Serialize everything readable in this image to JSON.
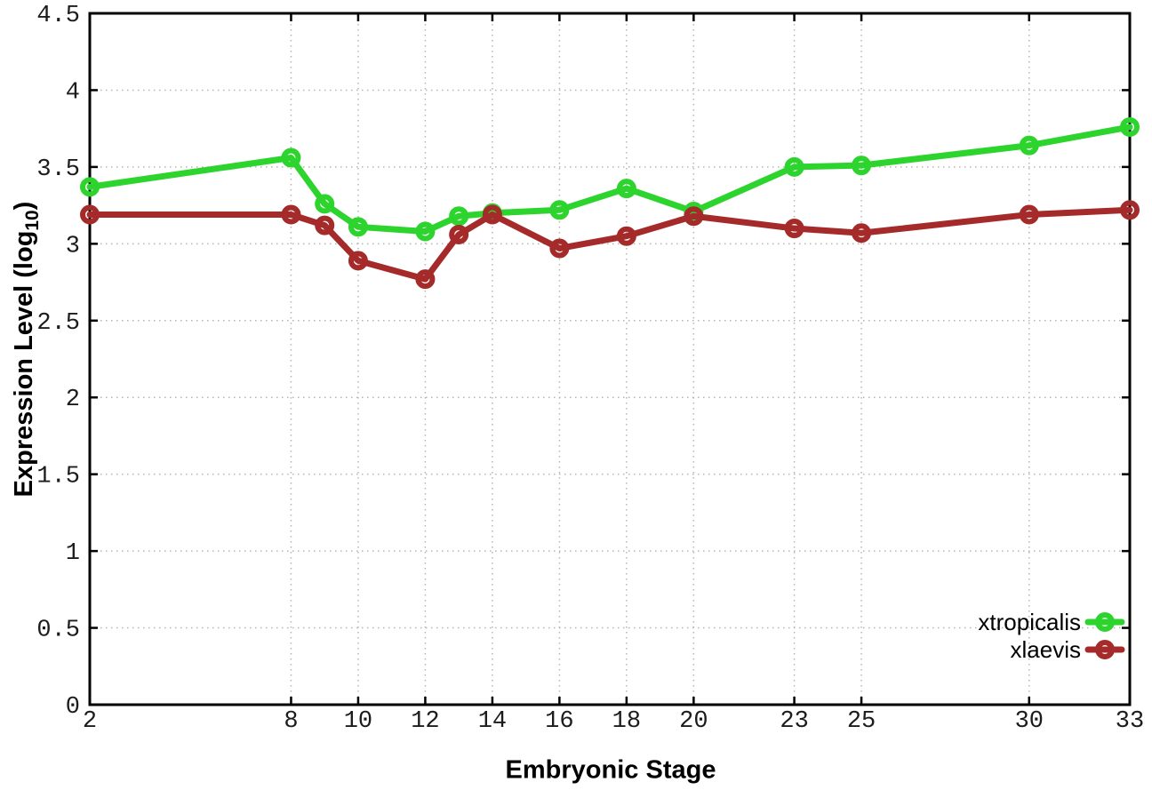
{
  "page": {
    "background": "#ffffff"
  },
  "chart_data": {
    "type": "line",
    "title": "",
    "xlabel": "Embryonic Stage",
    "ylabel": "Expression Level (log10)",
    "ylabel_parts": {
      "prefix": "Expression Level (log",
      "sub": "10",
      "suffix": ")"
    },
    "xlim": [
      2,
      33
    ],
    "ylim": [
      0,
      4.5
    ],
    "grid": true,
    "grid_style": "dotted",
    "xticks": [
      2,
      8,
      10,
      12,
      14,
      16,
      18,
      20,
      23,
      25,
      30,
      33
    ],
    "xtick_labels": [
      "2",
      "8",
      "10",
      "12",
      "14",
      "16",
      "18",
      "20",
      "23",
      "25",
      "30",
      "33"
    ],
    "yticks": [
      0,
      0.5,
      1,
      1.5,
      2,
      2.5,
      3,
      3.5,
      4,
      4.5
    ],
    "ytick_labels": [
      "0",
      "0.5",
      "1",
      "1.5",
      "2",
      "2.5",
      "3",
      "3.5",
      "4",
      "4.5"
    ],
    "x": [
      2,
      8,
      9,
      10,
      12,
      13,
      14,
      16,
      18,
      20,
      23,
      25,
      30,
      33
    ],
    "series": [
      {
        "name": "xtropicalis",
        "color": "#2ed42e",
        "marker": "open-circle",
        "values": [
          3.37,
          3.56,
          3.26,
          3.11,
          3.08,
          3.18,
          3.2,
          3.22,
          3.36,
          3.21,
          3.5,
          3.51,
          3.64,
          3.76
        ]
      },
      {
        "name": "xlaevis",
        "color": "#a52a2a",
        "marker": "open-circle",
        "values": [
          3.19,
          3.19,
          3.12,
          2.89,
          2.77,
          3.06,
          3.19,
          2.97,
          3.05,
          3.18,
          3.1,
          3.07,
          3.19,
          3.22
        ]
      }
    ],
    "legend_position": "inside-bottom-right",
    "colors": {
      "axis": "#000000",
      "grid": "#b5b5b5",
      "tick_text": "#1c1c1c"
    }
  }
}
